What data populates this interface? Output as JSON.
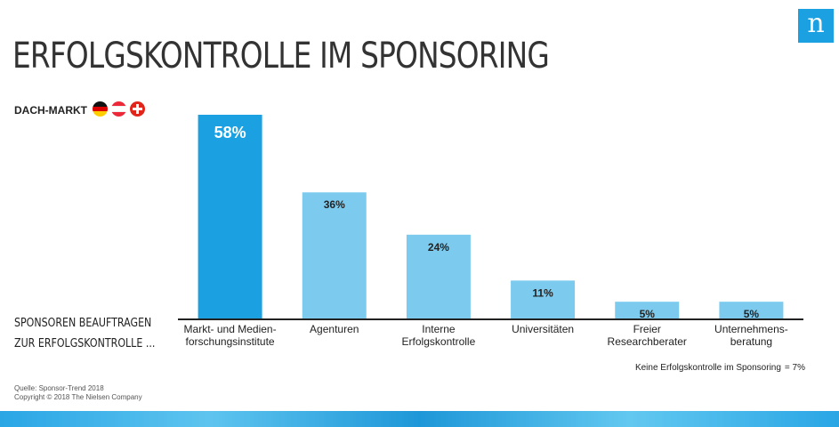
{
  "title": "ERFOLGSKONTROLLE IM SPONSORING",
  "logo_letter": "n",
  "market_label": "DACH-MARKT",
  "flags": [
    "germany-flag-icon",
    "austria-flag-icon",
    "switzerland-flag-icon"
  ],
  "side_label_1": "SPONSOREN BEAUFTRAGEN",
  "side_label_2": "ZUR ERFOLGSKONTROLLE ...",
  "footnote": {
    "text": "Keine Erfolgskontrolle im Sponsoring",
    "value": "= 7%"
  },
  "source_1": "Quelle: Sponsor-Trend 2018",
  "source_2": "Copyright © 2018  The Nielsen Company",
  "colors": {
    "highlight": "#1ba1e2",
    "bar": "#7ccbef",
    "axis": "#222222",
    "logo": "#1ba1e2"
  },
  "chart_data": {
    "type": "bar",
    "categories": [
      [
        "Markt- und Medien-",
        "forschungsinstitute"
      ],
      [
        "Agenturen"
      ],
      [
        "Interne",
        "Erfolgskontrolle"
      ],
      [
        "Universitäten"
      ],
      [
        "Freier",
        "Researchberater"
      ],
      [
        "Unternehmens-",
        "beratung"
      ]
    ],
    "values": [
      58,
      36,
      24,
      11,
      5,
      5
    ],
    "data_labels": [
      "58%",
      "36%",
      "24%",
      "11%",
      "5%",
      "5%"
    ],
    "highlight_index": 0,
    "ylim": [
      0,
      58
    ]
  }
}
